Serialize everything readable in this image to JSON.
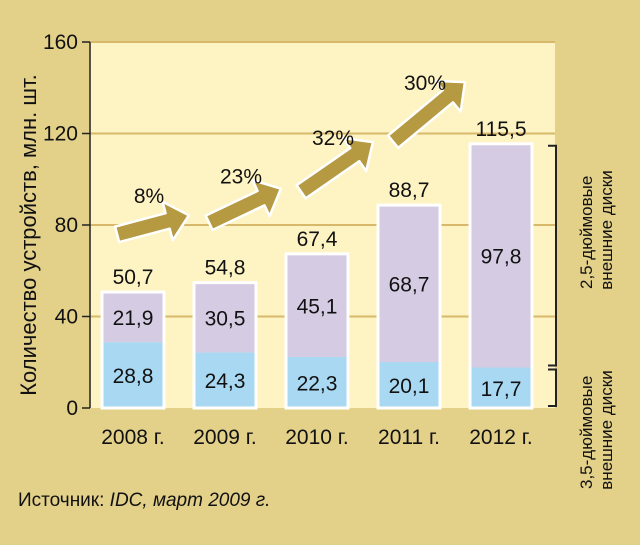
{
  "chart_data": {
    "type": "bar",
    "stacked": true,
    "ylabel": "Количество устройств, млн. шт.",
    "ylim": [
      0,
      160
    ],
    "yticks": [
      "0",
      "40",
      "80",
      "120",
      "160"
    ],
    "categories": [
      "2008 г.",
      "2009 г.",
      "2010 г.",
      "2011 г.",
      "2012 г."
    ],
    "series": [
      {
        "name": "3,5-дюймовые внешние диски",
        "values": [
          28.8,
          24.3,
          22.3,
          20.1,
          17.7
        ],
        "labels": [
          "28,8",
          "24,3",
          "22,3",
          "20,1",
          "17,7"
        ],
        "color": "#a9d8f2"
      },
      {
        "name": "2,5-дюймовые внешние диски",
        "values": [
          21.9,
          30.5,
          45.1,
          68.7,
          97.8
        ],
        "labels": [
          "21,9",
          "30,5",
          "45,1",
          "68,7",
          "97,8"
        ],
        "color": "#d5cbe3"
      }
    ],
    "totals": [
      50.7,
      54.8,
      67.4,
      88.7,
      115.5
    ],
    "total_labels": [
      "50,7",
      "54,8",
      "67,4",
      "88,7",
      "115,5"
    ],
    "growth": [
      "8%",
      "23%",
      "32%",
      "30%"
    ],
    "grid": true,
    "source_label": "Источник: ",
    "source_value": "IDC, март 2009 г.",
    "colors": {
      "background": "#e3d18a",
      "plot": "#fdf3c3",
      "grid": "#d8b86a",
      "arrow": "#b59a42"
    }
  }
}
